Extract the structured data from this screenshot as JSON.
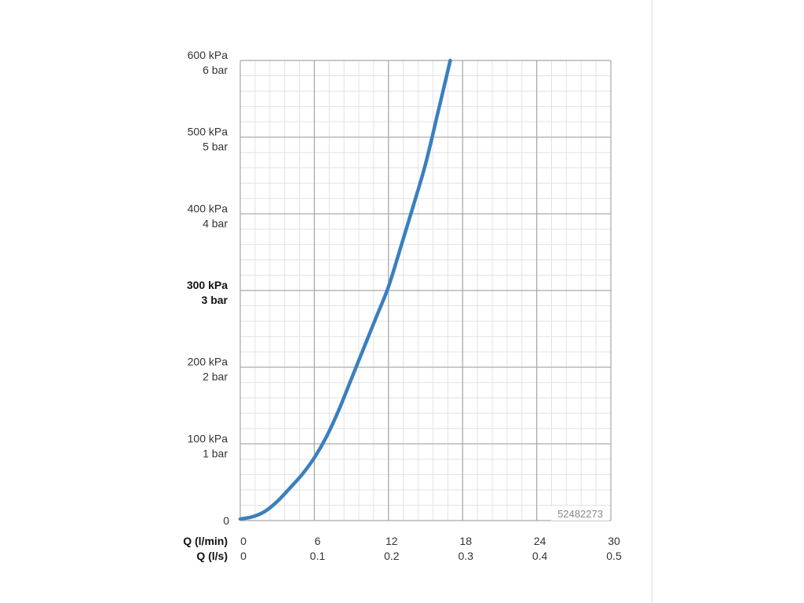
{
  "chart_data": {
    "type": "line",
    "title": "",
    "article_number": "52482273",
    "grid": true,
    "colors": {
      "curve": "#3a7fc0",
      "major_grid": "#a6a6a6",
      "minor_grid": "#e2e2e2"
    },
    "xlim": [
      0,
      30
    ],
    "ylim": [
      0,
      600
    ],
    "x_ticks": [
      0,
      6,
      12,
      18,
      24,
      30
    ],
    "x_axis_rows": [
      {
        "name": "Q (l/min)",
        "tick_labels": [
          "0",
          "6",
          "12",
          "18",
          "24",
          "30"
        ]
      },
      {
        "name": "Q (l/s)",
        "tick_labels": [
          "0",
          "0.1",
          "0.2",
          "0.3",
          "0.4",
          "0.5"
        ]
      }
    ],
    "y_ticks": [
      0,
      100,
      200,
      300,
      400,
      500,
      600
    ],
    "y_tick_labels": [
      {
        "kpa": "0",
        "bar": "",
        "bold": false
      },
      {
        "kpa": "100 kPa",
        "bar": "1 bar",
        "bold": false
      },
      {
        "kpa": "200 kPa",
        "bar": "2 bar",
        "bold": false
      },
      {
        "kpa": "300 kPa",
        "bar": "3 bar",
        "bold": true
      },
      {
        "kpa": "400 kPa",
        "bar": "4 bar",
        "bold": false
      },
      {
        "kpa": "500 kPa",
        "bar": "5 bar",
        "bold": false
      },
      {
        "kpa": "600 kPa",
        "bar": "6 bar",
        "bold": false
      }
    ],
    "series": [
      {
        "x": [
          0,
          1,
          2,
          3,
          4,
          5,
          6,
          7,
          8,
          9,
          10,
          11,
          12,
          13,
          14,
          15,
          16,
          17
        ],
        "y": [
          2,
          5,
          12,
          25,
          42,
          60,
          82,
          110,
          145,
          185,
          225,
          265,
          305,
          357,
          410,
          465,
          532,
          600
        ]
      }
    ]
  }
}
